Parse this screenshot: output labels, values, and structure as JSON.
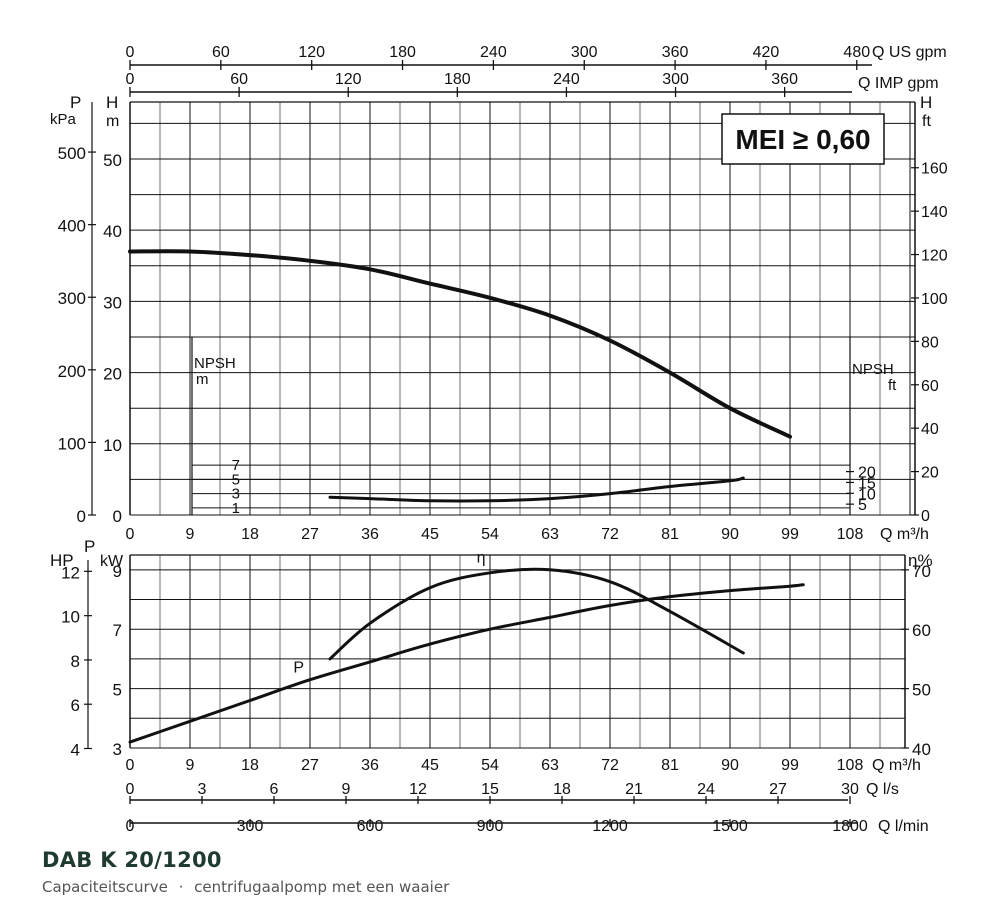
{
  "product_title": "DAB K 20/1200",
  "subtitle": "Capaciteitscurve",
  "subtitle_sep": "·",
  "subtitle_desc": "centrifugaalpomp met een waaier",
  "mei_label": "MEI ≥ 0,60",
  "colors": {
    "ink": "#111111",
    "title": "#1f3a2e",
    "muted": "#555555"
  },
  "chart_data": [
    {
      "type": "line",
      "panel": "head_and_npsh",
      "xlabel": "Q m³/h",
      "x_ticks": [
        0,
        9,
        18,
        27,
        36,
        45,
        54,
        63,
        72,
        81,
        90,
        99,
        108
      ],
      "xlim": [
        0,
        108
      ],
      "top_axes": [
        {
          "label": "Q US gpm",
          "ticks": [
            0,
            60,
            120,
            180,
            240,
            300,
            360,
            420,
            480
          ]
        },
        {
          "label": "Q IMP gpm",
          "ticks": [
            0,
            60,
            120,
            180,
            240,
            300,
            360
          ]
        }
      ],
      "y_axes": [
        {
          "label": "H",
          "unit": "m",
          "side": "left",
          "ticks": [
            0,
            10,
            20,
            30,
            40,
            50
          ],
          "range": [
            0,
            58
          ]
        },
        {
          "label": "P",
          "unit": "kPa",
          "side": "left",
          "ticks": [
            0,
            100,
            200,
            300,
            400,
            500
          ]
        },
        {
          "label": "H",
          "unit": "ft",
          "side": "right",
          "ticks": [
            0,
            20,
            40,
            60,
            80,
            100,
            120,
            140,
            160
          ]
        },
        {
          "label": "NPSH",
          "unit": "m",
          "side": "left-inner",
          "ticks": [
            1,
            3,
            5,
            7
          ]
        },
        {
          "label": "NPSH",
          "unit": "ft",
          "side": "right-inner",
          "ticks": [
            5,
            10,
            15,
            20
          ]
        }
      ],
      "grid": true,
      "series": [
        {
          "name": "H",
          "x": [
            0,
            9,
            18,
            27,
            36,
            45,
            54,
            63,
            72,
            81,
            90,
            99
          ],
          "y": [
            37,
            37,
            36.5,
            35.7,
            34.5,
            32.5,
            30.5,
            28,
            24.5,
            20,
            15,
            11
          ]
        },
        {
          "name": "NPSH",
          "x": [
            30,
            36,
            45,
            54,
            63,
            72,
            81,
            90,
            92
          ],
          "y": [
            2.5,
            2.3,
            2.0,
            2.0,
            2.3,
            3.0,
            4.0,
            4.8,
            5.2
          ]
        }
      ]
    },
    {
      "type": "line",
      "panel": "power_and_efficiency",
      "xlabel": "Q m³/h",
      "x_ticks": [
        0,
        9,
        18,
        27,
        36,
        45,
        54,
        63,
        72,
        81,
        90,
        99,
        108
      ],
      "xlim": [
        0,
        108
      ],
      "bottom_axes": [
        {
          "label": "Q l/s",
          "ticks": [
            0,
            3,
            6,
            9,
            12,
            15,
            18,
            21,
            24,
            27,
            30
          ]
        },
        {
          "label": "Q l/min",
          "ticks": [
            0,
            300,
            600,
            900,
            1200,
            1500,
            1800
          ]
        }
      ],
      "y_axes": [
        {
          "label": "P",
          "unit": "kW",
          "side": "left",
          "ticks": [
            3,
            5,
            7,
            9
          ],
          "range": [
            3,
            9.5
          ]
        },
        {
          "label": "HP",
          "unit": "",
          "side": "left-outer",
          "ticks": [
            4,
            6,
            8,
            10,
            12
          ]
        },
        {
          "label": "η",
          "unit": "%",
          "side": "right",
          "ticks": [
            40,
            50,
            60,
            70
          ]
        }
      ],
      "grid": true,
      "series": [
        {
          "name": "P",
          "x": [
            0,
            9,
            18,
            27,
            36,
            45,
            54,
            63,
            72,
            81,
            90,
            99,
            101
          ],
          "y": [
            3.2,
            3.9,
            4.6,
            5.3,
            5.9,
            6.5,
            7.0,
            7.4,
            7.8,
            8.1,
            8.3,
            8.45,
            8.5
          ]
        },
        {
          "name": "η",
          "x": [
            30,
            36,
            45,
            54,
            63,
            72,
            81,
            92
          ],
          "y": [
            55,
            61,
            67,
            69.5,
            70,
            68,
            63,
            56
          ]
        }
      ]
    }
  ]
}
